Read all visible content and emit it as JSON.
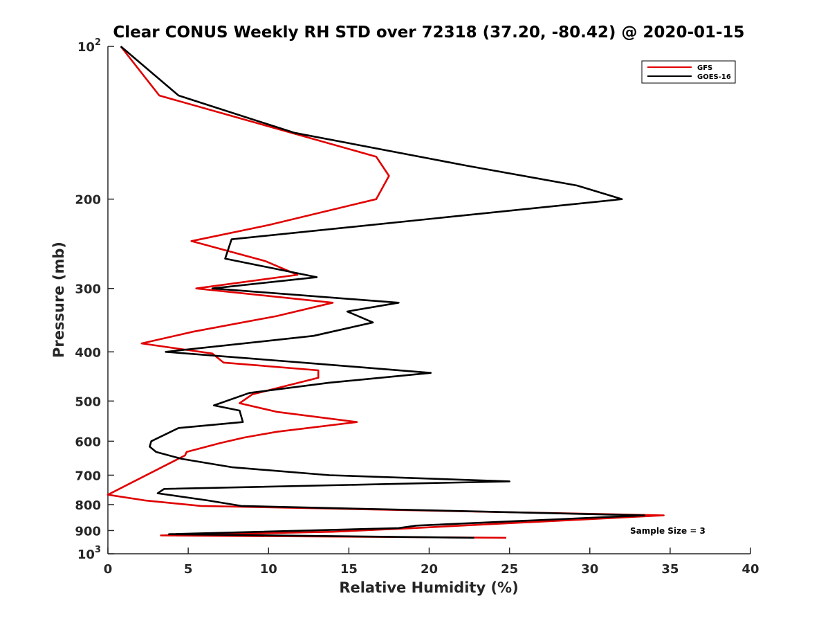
{
  "chart_data": {
    "type": "line",
    "title": "Clear CONUS Weekly RH STD over 72318 (37.20, -80.42) @ 2020-01-15",
    "xlabel": "Relative Humidity (%)",
    "ylabel": "Pressure (mb)",
    "xlim": [
      0,
      40
    ],
    "ylim": [
      100,
      1000
    ],
    "yscale": "log",
    "y_reversed": true,
    "xticks": [
      0,
      5,
      10,
      15,
      20,
      25,
      30,
      35,
      40
    ],
    "yticks": [
      {
        "value": 100,
        "label": "10",
        "sup": "2"
      },
      {
        "value": 200,
        "label": "200",
        "sup": ""
      },
      {
        "value": 300,
        "label": "300",
        "sup": ""
      },
      {
        "value": 400,
        "label": "400",
        "sup": ""
      },
      {
        "value": 500,
        "label": "500",
        "sup": ""
      },
      {
        "value": 600,
        "label": "600",
        "sup": ""
      },
      {
        "value": 700,
        "label": "700",
        "sup": ""
      },
      {
        "value": 800,
        "label": "800",
        "sup": ""
      },
      {
        "value": 900,
        "label": "900",
        "sup": ""
      },
      {
        "value": 1000,
        "label": "10",
        "sup": "3"
      }
    ],
    "legend_position": "top-right",
    "grid": false,
    "annotation": "Sample Size = 3",
    "series": [
      {
        "name": "GFS",
        "color": "#e00000",
        "points": [
          [
            0.8,
            100
          ],
          [
            3.2,
            125
          ],
          [
            16.7,
            165
          ],
          [
            17.5,
            180
          ],
          [
            16.7,
            200
          ],
          [
            10.0,
            225
          ],
          [
            5.2,
            242
          ],
          [
            9.8,
            265
          ],
          [
            11.8,
            282
          ],
          [
            5.5,
            300
          ],
          [
            14.0,
            320
          ],
          [
            10.5,
            340
          ],
          [
            5.3,
            365
          ],
          [
            2.1,
            385
          ],
          [
            6.5,
            403
          ],
          [
            7.2,
            420
          ],
          [
            13.1,
            435
          ],
          [
            13.1,
            450
          ],
          [
            9.0,
            485
          ],
          [
            8.2,
            505
          ],
          [
            10.5,
            525
          ],
          [
            15.5,
            550
          ],
          [
            10.5,
            575
          ],
          [
            8.5,
            590
          ],
          [
            7.0,
            605
          ],
          [
            4.9,
            630
          ],
          [
            4.8,
            640
          ],
          [
            0.0,
            765
          ],
          [
            2.3,
            785
          ],
          [
            5.8,
            805
          ],
          [
            34.6,
            840
          ],
          [
            19.0,
            890
          ],
          [
            14.0,
            905
          ],
          [
            3.3,
            920
          ],
          [
            24.8,
            930
          ]
        ]
      },
      {
        "name": "GOES-16",
        "color": "#000000",
        "points": [
          [
            0.8,
            100
          ],
          [
            4.4,
            125
          ],
          [
            11.6,
            148
          ],
          [
            22.4,
            172
          ],
          [
            29.2,
            188
          ],
          [
            32.0,
            200
          ],
          [
            7.7,
            240
          ],
          [
            7.3,
            262
          ],
          [
            13.0,
            285
          ],
          [
            6.5,
            300
          ],
          [
            18.1,
            320
          ],
          [
            14.9,
            333
          ],
          [
            16.5,
            350
          ],
          [
            12.8,
            372
          ],
          [
            3.6,
            400
          ],
          [
            13.0,
            422
          ],
          [
            20.1,
            440
          ],
          [
            13.8,
            460
          ],
          [
            8.8,
            482
          ],
          [
            6.6,
            510
          ],
          [
            8.2,
            522
          ],
          [
            8.4,
            550
          ],
          [
            4.4,
            565
          ],
          [
            2.7,
            600
          ],
          [
            2.6,
            615
          ],
          [
            3.0,
            630
          ],
          [
            4.6,
            650
          ],
          [
            7.7,
            675
          ],
          [
            13.8,
            700
          ],
          [
            25.0,
            720
          ],
          [
            3.5,
            745
          ],
          [
            3.1,
            760
          ],
          [
            6.2,
            785
          ],
          [
            8.3,
            805
          ],
          [
            33.4,
            840
          ],
          [
            19.2,
            880
          ],
          [
            18.1,
            890
          ],
          [
            3.8,
            915
          ],
          [
            22.8,
            930
          ]
        ]
      }
    ]
  }
}
